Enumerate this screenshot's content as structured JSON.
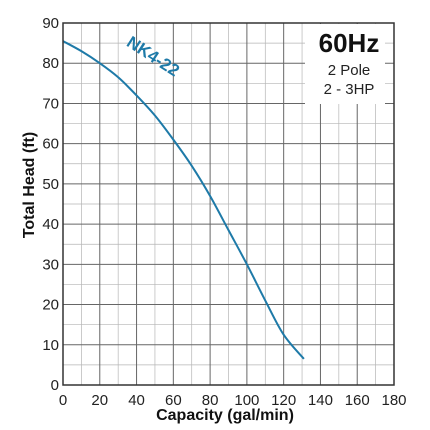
{
  "chart_data": {
    "type": "line",
    "xlabel": "Capacity (gal/min)",
    "ylabel": "Total Head (ft)",
    "xlim": [
      0,
      180
    ],
    "ylim": [
      0,
      90
    ],
    "x_ticks": [
      0,
      20,
      40,
      60,
      80,
      100,
      120,
      140,
      160,
      180
    ],
    "y_ticks": [
      0,
      10,
      20,
      30,
      40,
      50,
      60,
      70,
      80,
      90
    ],
    "grid": "on",
    "minor_grid_step": {
      "x": 10,
      "y": 5
    },
    "series": [
      {
        "name": "NK4-22",
        "color": "#1e7aa8",
        "x": [
          0,
          10,
          20,
          30,
          40,
          50,
          60,
          70,
          80,
          90,
          100,
          110,
          120,
          131
        ],
        "y": [
          85.5,
          83,
          80,
          76.5,
          72,
          67,
          61,
          54.5,
          47,
          38.5,
          30,
          21,
          12.5,
          6.5
        ]
      }
    ],
    "info_box": {
      "frequency": "60Hz",
      "poles": "2 Pole",
      "horsepower": "2 - 3HP"
    }
  }
}
